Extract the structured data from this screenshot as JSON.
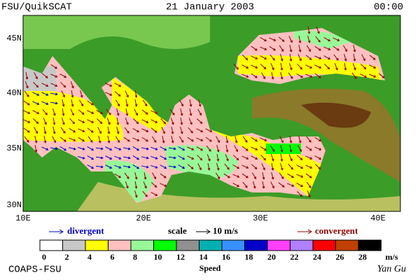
{
  "header": {
    "left": "FSU/QuikSCAT",
    "center": "21 January 2003",
    "right": "00:00"
  },
  "map": {
    "lat_labels": [
      "45N",
      "40N",
      "35N",
      "30N"
    ],
    "lon_labels": [
      "10E",
      "20E",
      "30E",
      "40E"
    ]
  },
  "legend": {
    "divergent": "divergent",
    "scale": "scale",
    "scale_value": "10 m/s",
    "convergent": "convergent"
  },
  "colorbar": {
    "title": "Speed",
    "unit": "m/s",
    "ticks": [
      0,
      2,
      4,
      6,
      8,
      10,
      12,
      14,
      16,
      18,
      20,
      22,
      24,
      26,
      28
    ],
    "colors": [
      "#ffffff",
      "#c8c8c8",
      "#ffff00",
      "#ffc0c0",
      "#98f898",
      "#00ff00",
      "#909090",
      "#00b0b0",
      "#3890ff",
      "#0000c8",
      "#ff40ff",
      "#b080ff",
      "#ff0000",
      "#c04000",
      "#000000"
    ]
  },
  "footer": {
    "left": "COAPS-FSU",
    "right": "Yan Gu"
  }
}
